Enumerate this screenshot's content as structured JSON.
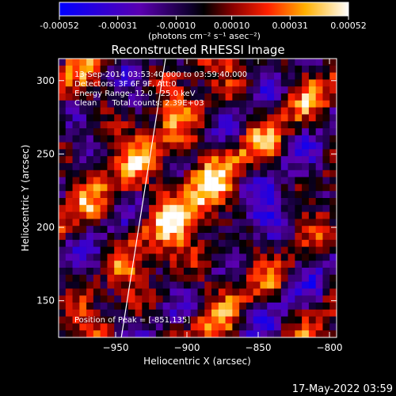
{
  "chart_data": {
    "type": "heatmap",
    "title": "Reconstructed RHESSI Image",
    "xlabel": "Heliocentric X (arcsec)",
    "ylabel": "Heliocentric Y (arcsec)",
    "x_range": [
      -990,
      -795
    ],
    "y_range": [
      125,
      315
    ],
    "x_ticks": [
      -950,
      -900,
      -850,
      -800
    ],
    "y_ticks": [
      150,
      200,
      250,
      300
    ],
    "colorbar": {
      "min": -0.00052,
      "max": 0.00052,
      "ticks": [
        -0.00052,
        -0.00031,
        -0.0001,
        0.0001,
        0.00031,
        0.00052
      ],
      "tick_labels": [
        "-0.00052",
        "-0.00031",
        "-0.00010",
        "0.00010",
        "0.00031",
        "0.00052"
      ],
      "unit_label": "(photons cm⁻² s⁻¹ asec⁻²)"
    },
    "annotations": {
      "time": "13-Sep-2014 03:53:40.000 to 03:59:40.000",
      "detectors": "Detectors: 3F 6F 9F, Att:0",
      "energy": "Energy Range: 12.0 - 25.0 keV",
      "algorithm": "Clean      Total counts: 2.39E+03",
      "peak": "Position of Peak = [-851,135]"
    },
    "limb_line": [
      [
        -946,
        125
      ],
      [
        -915,
        315
      ]
    ],
    "grid_size": [
      40,
      40
    ],
    "colors": {
      "background": "#000000",
      "text": "#ffffff",
      "limb": "#ffffff"
    }
  },
  "footer": {
    "timestamp": "17-May-2022 03:59"
  }
}
